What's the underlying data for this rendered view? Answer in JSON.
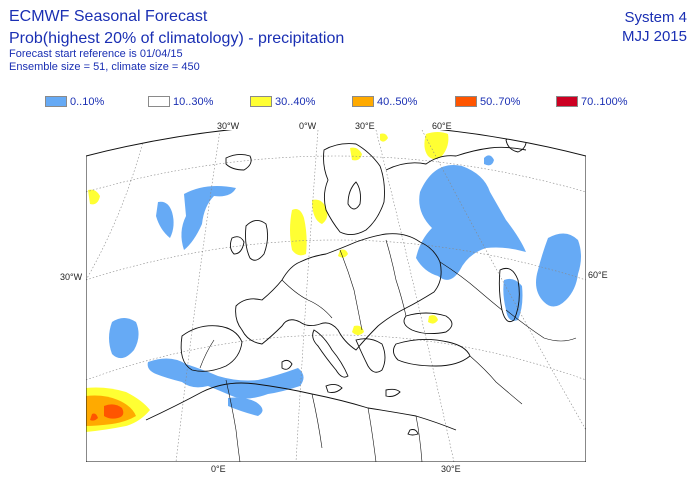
{
  "header": {
    "title": "ECMWF Seasonal Forecast",
    "subtitle": "Prob(highest 20% of climatology) - precipitation",
    "line3": "Forecast start reference is 01/04/15",
    "line4": "Ensemble size = 51, climate size = 450",
    "system": "System 4",
    "period": "MJJ 2015"
  },
  "legend": [
    {
      "label": "0..10%",
      "color": "#66aaf5"
    },
    {
      "label": "10..30%",
      "color": "#ffffff"
    },
    {
      "label": "30..40%",
      "color": "#ffff33"
    },
    {
      "label": "40..50%",
      "color": "#ffaa00"
    },
    {
      "label": "50..70%",
      "color": "#ff5500"
    },
    {
      "label": "70..100%",
      "color": "#cc0022"
    }
  ],
  "graticule": {
    "top": [
      "30°W",
      "0°W",
      "30°E",
      "60°E"
    ],
    "bottom": [
      "0°E",
      "30°E"
    ],
    "left": "30°W",
    "right": "60°E"
  }
}
